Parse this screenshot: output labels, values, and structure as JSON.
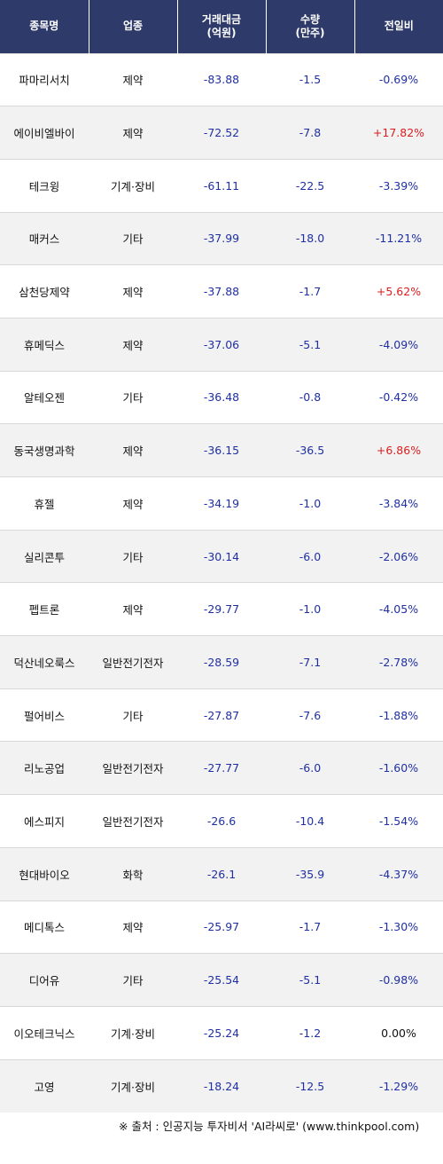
{
  "headers": {
    "name": "종목명",
    "sector": "업종",
    "amount_line1": "거래대금",
    "amount_line2": "(억원)",
    "volume_line1": "수량",
    "volume_line2": "(만주)",
    "change": "전일비"
  },
  "rows": [
    {
      "name": "파마리서치",
      "sector": "제약",
      "amount": "-83.88",
      "volume": "-1.5",
      "change": "-0.69%",
      "dir": "down"
    },
    {
      "name": "에이비엘바이",
      "sector": "제약",
      "amount": "-72.52",
      "volume": "-7.8",
      "change": "+17.82%",
      "dir": "up"
    },
    {
      "name": "테크윙",
      "sector": "기계·장비",
      "amount": "-61.11",
      "volume": "-22.5",
      "change": "-3.39%",
      "dir": "down"
    },
    {
      "name": "매커스",
      "sector": "기타",
      "amount": "-37.99",
      "volume": "-18.0",
      "change": "-11.21%",
      "dir": "down"
    },
    {
      "name": "삼천당제약",
      "sector": "제약",
      "amount": "-37.88",
      "volume": "-1.7",
      "change": "+5.62%",
      "dir": "up"
    },
    {
      "name": "휴메딕스",
      "sector": "제약",
      "amount": "-37.06",
      "volume": "-5.1",
      "change": "-4.09%",
      "dir": "down"
    },
    {
      "name": "알테오젠",
      "sector": "기타",
      "amount": "-36.48",
      "volume": "-0.8",
      "change": "-0.42%",
      "dir": "down"
    },
    {
      "name": "동국생명과학",
      "sector": "제약",
      "amount": "-36.15",
      "volume": "-36.5",
      "change": "+6.86%",
      "dir": "up"
    },
    {
      "name": "휴젤",
      "sector": "제약",
      "amount": "-34.19",
      "volume": "-1.0",
      "change": "-3.84%",
      "dir": "down"
    },
    {
      "name": "실리콘투",
      "sector": "기타",
      "amount": "-30.14",
      "volume": "-6.0",
      "change": "-2.06%",
      "dir": "down"
    },
    {
      "name": "펩트론",
      "sector": "제약",
      "amount": "-29.77",
      "volume": "-1.0",
      "change": "-4.05%",
      "dir": "down"
    },
    {
      "name": "덕산네오룩스",
      "sector": "일반전기전자",
      "amount": "-28.59",
      "volume": "-7.1",
      "change": "-2.78%",
      "dir": "down"
    },
    {
      "name": "펄어비스",
      "sector": "기타",
      "amount": "-27.87",
      "volume": "-7.6",
      "change": "-1.88%",
      "dir": "down"
    },
    {
      "name": "리노공업",
      "sector": "일반전기전자",
      "amount": "-27.77",
      "volume": "-6.0",
      "change": "-1.60%",
      "dir": "down"
    },
    {
      "name": "에스피지",
      "sector": "일반전기전자",
      "amount": "-26.6",
      "volume": "-10.4",
      "change": "-1.54%",
      "dir": "down"
    },
    {
      "name": "현대바이오",
      "sector": "화학",
      "amount": "-26.1",
      "volume": "-35.9",
      "change": "-4.37%",
      "dir": "down"
    },
    {
      "name": "메디톡스",
      "sector": "제약",
      "amount": "-25.97",
      "volume": "-1.7",
      "change": "-1.30%",
      "dir": "down"
    },
    {
      "name": "디어유",
      "sector": "기타",
      "amount": "-25.54",
      "volume": "-5.1",
      "change": "-0.98%",
      "dir": "down"
    },
    {
      "name": "이오테크닉스",
      "sector": "기계·장비",
      "amount": "-25.24",
      "volume": "-1.2",
      "change": "0.00%",
      "dir": "flat"
    },
    {
      "name": "고영",
      "sector": "기계·장비",
      "amount": "-18.24",
      "volume": "-12.5",
      "change": "-1.29%",
      "dir": "down"
    }
  ],
  "footer": "※ 출처 : 인공지능 투자비서 'AI라씨로' (www.thinkpool.com)",
  "colors": {
    "header_bg": "#2e3a69",
    "up": "#d81f1f",
    "down": "#1f2fa6",
    "flat": "#111111"
  }
}
